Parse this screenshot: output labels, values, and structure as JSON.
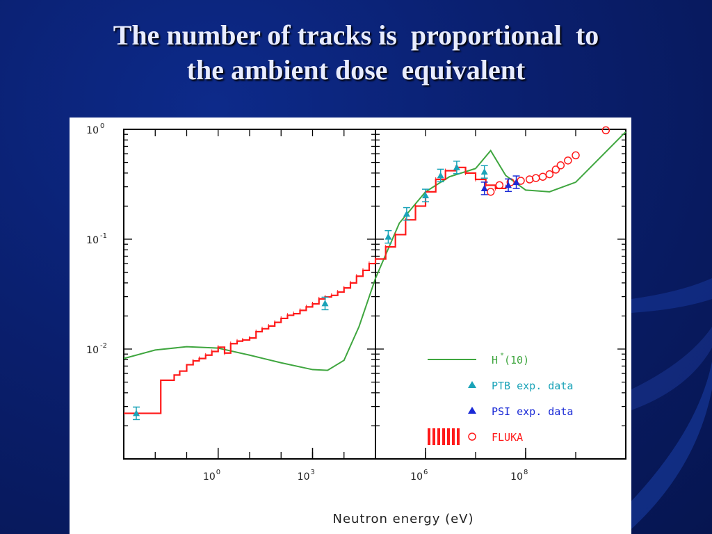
{
  "slide": {
    "title_line1": "The number of tracks is  proportional  to",
    "title_line2": "the ambient dose  equivalent"
  },
  "chart_data": {
    "type": "line",
    "xlabel": "Neutron energy (eV)",
    "ylabel": "",
    "x_scale": "log",
    "y_scale": "log",
    "ylim": [
      0.001,
      1
    ],
    "y_ticks": [
      {
        "base": "10",
        "exp": "0",
        "value": 1
      },
      {
        "base": "10",
        "exp": "-1",
        "value": 0.1
      },
      {
        "base": "10",
        "exp": "-2",
        "value": 0.01
      }
    ],
    "left_panel": {
      "xlim": [
        0.001,
        100000
      ],
      "x_ticks": [
        {
          "base": "10",
          "exp": "0",
          "value": 1
        },
        {
          "base": "10",
          "exp": "3",
          "value": 1000
        }
      ]
    },
    "right_panel": {
      "xlim": [
        100000,
        10000000000
      ],
      "x_ticks": [
        {
          "base": "10",
          "exp": "6",
          "value": 1000000
        },
        {
          "base": "10",
          "exp": "8",
          "value": 100000000
        }
      ]
    },
    "legend": {
      "placement": "bottom-right",
      "entries": [
        {
          "label": "H*(10)",
          "label_main": "H",
          "label_sup": "*",
          "label_rest": "(10)",
          "marker": "line",
          "color": "#3fa63f"
        },
        {
          "label": "PTB exp. data",
          "marker": "triangle",
          "color": "#1aa3b8"
        },
        {
          "label": "PSI exp. data",
          "marker": "triangle",
          "color": "#1a2ad6"
        },
        {
          "label": "FLUKA",
          "marker": "histogram+circle",
          "color": "#ff1a1a"
        }
      ]
    },
    "series": [
      {
        "name": "H*(10)",
        "color": "#3fa63f",
        "style": "line",
        "x": [
          0.001,
          0.01,
          0.1,
          1,
          10,
          100,
          1000,
          3000,
          10000,
          30000,
          100000,
          300000,
          1000000,
          3000000,
          10000000,
          20000000,
          40000000,
          100000000,
          300000000,
          1000000000,
          10000000000
        ],
        "y": [
          0.0082,
          0.0098,
          0.0105,
          0.0102,
          0.0088,
          0.0075,
          0.0065,
          0.0064,
          0.0079,
          0.016,
          0.044,
          0.14,
          0.27,
          0.37,
          0.44,
          0.64,
          0.38,
          0.28,
          0.27,
          0.33,
          0.95
        ]
      },
      {
        "name": "FLUKA",
        "color": "#ff1a1a",
        "style": "step",
        "x": [
          0.001,
          0.015,
          0.015,
          0.04,
          0.06,
          0.1,
          0.16,
          0.25,
          0.4,
          0.63,
          1,
          1.6,
          2.5,
          4,
          6,
          10,
          16,
          25,
          40,
          63,
          100,
          160,
          250,
          400,
          630,
          1000,
          1600,
          2500,
          4000,
          6300,
          10000,
          16000,
          25000,
          40000,
          63000,
          100000,
          160000,
          250000,
          400000,
          630000,
          1000000,
          1600000,
          2500000,
          4000000,
          6300000,
          10000000,
          16000000,
          25000000,
          40000000
        ],
        "y": [
          0.0026,
          0.0026,
          0.0052,
          0.0058,
          0.0063,
          0.0072,
          0.0078,
          0.0082,
          0.0088,
          0.0095,
          0.0104,
          0.0092,
          0.0112,
          0.0118,
          0.0121,
          0.0126,
          0.0144,
          0.0153,
          0.0162,
          0.0175,
          0.019,
          0.0203,
          0.021,
          0.0225,
          0.0242,
          0.0258,
          0.0286,
          0.0298,
          0.0308,
          0.033,
          0.036,
          0.04,
          0.046,
          0.052,
          0.06,
          0.066,
          0.085,
          0.11,
          0.15,
          0.2,
          0.27,
          0.35,
          0.42,
          0.45,
          0.4,
          0.35,
          0.31,
          0.29,
          0.3
        ]
      },
      {
        "name": "FLUKA",
        "color": "#ff1a1a",
        "style": "open-circle",
        "x": [
          20000000,
          30000000,
          50000000,
          80000000,
          120000000,
          160000000,
          220000000,
          300000000,
          400000000,
          500000000,
          700000000,
          1000000000,
          4000000000
        ],
        "y": [
          0.27,
          0.31,
          0.33,
          0.34,
          0.35,
          0.36,
          0.37,
          0.39,
          0.43,
          0.47,
          0.52,
          0.58,
          0.98
        ]
      },
      {
        "name": "PTB exp. data",
        "color": "#1aa3b8",
        "style": "triangle",
        "x": [
          0.0025,
          2500,
          180000,
          420000,
          1000000,
          2000000,
          4200000,
          15000000
        ],
        "y": [
          0.0026,
          0.026,
          0.105,
          0.17,
          0.25,
          0.38,
          0.45,
          0.41
        ]
      },
      {
        "name": "PSI exp. data",
        "color": "#1a2ad6",
        "style": "triangle",
        "x": [
          15000000,
          45000000,
          65000000
        ],
        "y": [
          0.29,
          0.31,
          0.33
        ]
      }
    ]
  }
}
